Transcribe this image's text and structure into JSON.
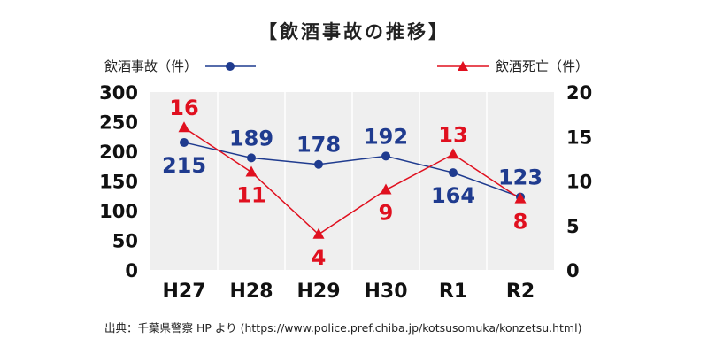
{
  "chart_data": {
    "type": "line",
    "title": "【飲酒事故の推移】",
    "categories": [
      "H27",
      "H28",
      "H29",
      "H30",
      "R1",
      "R2"
    ],
    "series": [
      {
        "name": "飲酒事故（件）",
        "axis": "left",
        "color": "#1f3b8f",
        "marker": "circle",
        "values": [
          215,
          189,
          178,
          192,
          164,
          123
        ]
      },
      {
        "name": "飲酒死亡（件）",
        "axis": "right",
        "color": "#e0101f",
        "marker": "triangle",
        "values": [
          16,
          11,
          4,
          9,
          13,
          8
        ]
      }
    ],
    "y_left": {
      "range": [
        0,
        300
      ],
      "ticks": [
        "0",
        "50",
        "100",
        "150",
        "200",
        "250",
        "300"
      ]
    },
    "y_right": {
      "range": [
        0,
        20
      ],
      "ticks": [
        "0",
        "5",
        "10",
        "15",
        "20"
      ]
    },
    "grid": "vertical",
    "legend": "top",
    "source": "出典：千葉県警察 HP より (https://www.police.pref.chiba.jp/kotsusomuka/konzetsu.html)"
  }
}
